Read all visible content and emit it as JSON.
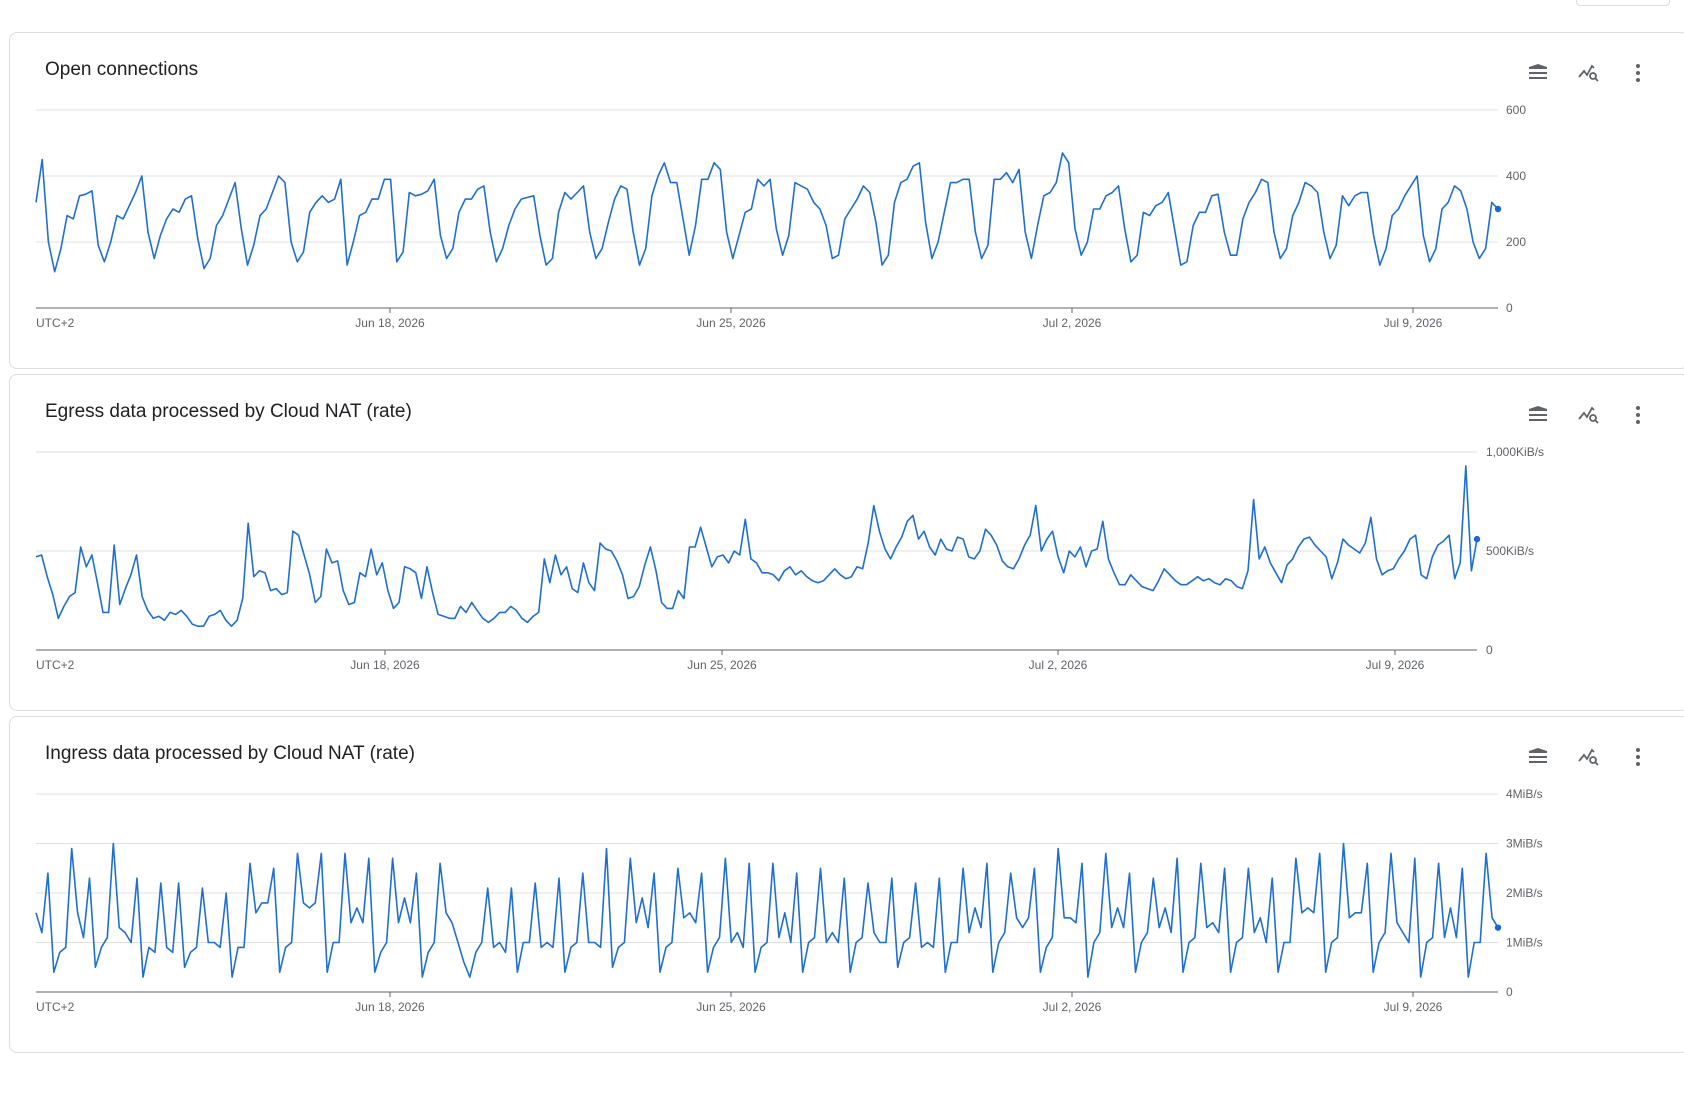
{
  "colors": {
    "series": "#1f6fd1",
    "grid": "#e0e0e0",
    "text": "#202124",
    "axis_text": "#5f6368"
  },
  "toolbar": {
    "legend_icon": "legend-icon",
    "explore_icon": "explore-icon",
    "more_icon": "more-vert-icon"
  },
  "cards": [
    {
      "title": "Open connections"
    },
    {
      "title": "Egress data processed by Cloud NAT (rate)"
    },
    {
      "title": "Ingress data processed by Cloud NAT (rate)"
    }
  ],
  "chart_data": [
    {
      "type": "line",
      "title": "Open connections",
      "timezone_label": "UTC+2",
      "x_tick_labels": [
        "Jun 18, 2026",
        "Jun 25, 2026",
        "Jul 2, 2026",
        "Jul 9, 2026"
      ],
      "x_range": [
        "2026-06-11T00:00",
        "2026-07-11T12:00"
      ],
      "y_tick_labels": [
        "0",
        "200",
        "400",
        "600"
      ],
      "ylim": [
        0,
        600
      ],
      "grid": true,
      "series": [
        {
          "values": [
            320,
            450,
            200,
            110,
            180,
            280,
            270,
            340,
            345,
            355,
            190,
            140,
            200,
            280,
            270,
            310,
            350,
            400,
            230,
            150,
            220,
            270,
            300,
            290,
            330,
            340,
            210,
            120,
            150,
            250,
            280,
            330,
            380,
            240,
            130,
            190,
            280,
            300,
            350,
            400,
            380,
            200,
            140,
            170,
            290,
            320,
            340,
            320,
            330,
            390,
            130,
            200,
            280,
            290,
            330,
            330,
            390,
            390,
            140,
            170,
            350,
            340,
            345,
            355,
            390,
            220,
            150,
            180,
            290,
            330,
            330,
            360,
            370,
            230,
            140,
            180,
            250,
            300,
            330,
            335,
            340,
            220,
            130,
            150,
            290,
            350,
            330,
            350,
            370,
            230,
            150,
            180,
            260,
            330,
            370,
            360,
            230,
            130,
            180,
            340,
            400,
            440,
            380,
            380,
            270,
            160,
            250,
            390,
            390,
            440,
            420,
            230,
            150,
            220,
            290,
            300,
            390,
            370,
            390,
            240,
            160,
            220,
            380,
            370,
            360,
            320,
            300,
            250,
            150,
            160,
            270,
            300,
            330,
            370,
            350,
            260,
            130,
            160,
            320,
            380,
            390,
            430,
            440,
            260,
            150,
            200,
            290,
            380,
            380,
            390,
            390,
            230,
            150,
            190,
            390,
            390,
            410,
            380,
            420,
            230,
            150,
            250,
            340,
            350,
            380,
            470,
            440,
            240,
            160,
            200,
            300,
            300,
            340,
            350,
            370,
            240,
            140,
            160,
            290,
            280,
            310,
            320,
            350,
            240,
            130,
            140,
            250,
            290,
            290,
            340,
            345,
            230,
            160,
            160,
            270,
            320,
            350,
            390,
            380,
            230,
            150,
            180,
            280,
            320,
            380,
            370,
            350,
            230,
            150,
            190,
            340,
            310,
            340,
            350,
            350,
            220,
            130,
            180,
            280,
            300,
            340,
            370,
            400,
            220,
            140,
            180,
            300,
            320,
            370,
            355,
            300,
            200,
            150,
            180,
            320,
            300
          ]
        }
      ]
    },
    {
      "type": "line",
      "title": "Egress data processed by Cloud NAT (rate)",
      "timezone_label": "UTC+2",
      "x_tick_labels": [
        "Jun 18, 2026",
        "Jun 25, 2026",
        "Jul 2, 2026",
        "Jul 9, 2026"
      ],
      "x_range": [
        "2026-06-11T00:00",
        "2026-07-11T12:00"
      ],
      "y_tick_labels": [
        "0",
        "500KiB/s",
        "1,000KiB/s"
      ],
      "ylim": [
        0,
        1000
      ],
      "grid": true,
      "series": [
        {
          "values": [
            470,
            480,
            370,
            280,
            160,
            220,
            270,
            290,
            520,
            420,
            480,
            340,
            190,
            190,
            530,
            230,
            310,
            380,
            480,
            270,
            200,
            160,
            170,
            150,
            190,
            180,
            200,
            170,
            130,
            120,
            120,
            170,
            180,
            200,
            150,
            120,
            150,
            260,
            640,
            370,
            400,
            390,
            300,
            310,
            280,
            290,
            600,
            580,
            480,
            380,
            240,
            270,
            510,
            440,
            450,
            300,
            230,
            240,
            390,
            370,
            510,
            380,
            440,
            300,
            210,
            240,
            420,
            410,
            390,
            260,
            420,
            290,
            180,
            170,
            160,
            160,
            220,
            190,
            240,
            200,
            160,
            140,
            160,
            190,
            190,
            220,
            200,
            160,
            140,
            170,
            190,
            460,
            340,
            480,
            380,
            420,
            310,
            290,
            440,
            340,
            300,
            540,
            510,
            500,
            450,
            380,
            260,
            270,
            320,
            430,
            520,
            400,
            240,
            210,
            210,
            300,
            260,
            520,
            520,
            620,
            520,
            420,
            470,
            480,
            440,
            500,
            480,
            660,
            460,
            440,
            390,
            390,
            380,
            350,
            400,
            420,
            380,
            400,
            370,
            350,
            340,
            350,
            380,
            410,
            380,
            360,
            370,
            420,
            410,
            540,
            730,
            600,
            510,
            460,
            520,
            570,
            650,
            680,
            560,
            600,
            520,
            480,
            560,
            510,
            500,
            570,
            560,
            470,
            460,
            500,
            610,
            580,
            530,
            450,
            420,
            410,
            460,
            530,
            580,
            730,
            500,
            560,
            600,
            470,
            390,
            500,
            470,
            520,
            420,
            500,
            510,
            650,
            460,
            390,
            330,
            330,
            380,
            350,
            320,
            310,
            300,
            350,
            410,
            380,
            350,
            330,
            330,
            350,
            370,
            350,
            360,
            340,
            330,
            360,
            350,
            320,
            310,
            400,
            760,
            460,
            520,
            440,
            390,
            340,
            430,
            460,
            520,
            560,
            570,
            530,
            500,
            470,
            360,
            440,
            560,
            530,
            510,
            490,
            540,
            670,
            460,
            380,
            400,
            410,
            460,
            500,
            560,
            580,
            380,
            360,
            470,
            530,
            550,
            580,
            360,
            440,
            930,
            400,
            560
          ]
        }
      ]
    },
    {
      "type": "line",
      "title": "Ingress data processed by Cloud NAT (rate)",
      "timezone_label": "UTC+2",
      "x_tick_labels": [
        "Jun 18, 2026",
        "Jun 25, 2026",
        "Jul 2, 2026",
        "Jul 9, 2026"
      ],
      "x_range": [
        "2026-06-11T00:00",
        "2026-07-11T12:00"
      ],
      "y_tick_labels": [
        "0",
        "1MiB/s",
        "2MiB/s",
        "3MiB/s",
        "4MiB/s"
      ],
      "ylim": [
        0,
        4
      ],
      "grid": true,
      "series": [
        {
          "values": [
            1.6,
            1.2,
            2.4,
            0.4,
            0.8,
            0.9,
            2.9,
            1.6,
            1.1,
            2.3,
            0.5,
            0.9,
            1.1,
            3.0,
            1.3,
            1.2,
            1.0,
            2.3,
            0.3,
            0.9,
            0.8,
            2.2,
            0.9,
            0.8,
            2.2,
            0.5,
            0.8,
            0.9,
            2.1,
            1.0,
            1.0,
            0.9,
            2.0,
            0.3,
            0.9,
            0.9,
            2.6,
            1.6,
            1.8,
            1.8,
            2.5,
            0.4,
            0.9,
            1.0,
            2.8,
            1.8,
            1.7,
            1.8,
            2.8,
            0.4,
            1.0,
            1.0,
            2.8,
            1.4,
            1.7,
            1.4,
            2.7,
            0.4,
            0.8,
            1.0,
            2.7,
            1.4,
            1.9,
            1.4,
            2.4,
            0.3,
            0.8,
            1.0,
            2.6,
            1.6,
            1.4,
            1.0,
            0.6,
            0.3,
            0.8,
            1.0,
            2.1,
            0.9,
            1.0,
            0.8,
            2.1,
            0.4,
            1.0,
            1.0,
            2.2,
            0.9,
            1.0,
            0.9,
            2.3,
            0.4,
            0.9,
            1.0,
            2.4,
            1.0,
            1.0,
            0.9,
            2.9,
            0.5,
            0.9,
            1.0,
            2.7,
            1.4,
            1.9,
            1.3,
            2.4,
            0.4,
            0.9,
            1.0,
            2.5,
            1.5,
            1.6,
            1.4,
            2.4,
            0.4,
            0.9,
            1.1,
            2.7,
            1.0,
            1.2,
            0.9,
            2.6,
            0.4,
            0.9,
            1.0,
            2.6,
            1.1,
            1.6,
            1.0,
            2.4,
            0.4,
            1.0,
            1.1,
            2.5,
            1.0,
            1.2,
            1.0,
            2.3,
            0.4,
            1.0,
            1.1,
            2.2,
            1.2,
            1.0,
            1.0,
            2.3,
            0.5,
            1.0,
            1.1,
            2.2,
            0.9,
            1.0,
            0.9,
            2.3,
            0.4,
            1.0,
            1.0,
            2.5,
            1.2,
            1.7,
            1.3,
            2.6,
            0.4,
            1.0,
            1.2,
            2.4,
            1.5,
            1.3,
            1.5,
            2.5,
            0.4,
            0.9,
            1.1,
            2.9,
            1.5,
            1.5,
            1.4,
            2.6,
            0.3,
            1.0,
            1.2,
            2.8,
            1.3,
            1.7,
            1.3,
            2.4,
            0.4,
            1.0,
            1.2,
            2.3,
            1.3,
            1.7,
            1.2,
            2.7,
            0.4,
            1.0,
            1.1,
            2.6,
            1.3,
            1.4,
            1.2,
            2.5,
            0.4,
            1.0,
            1.1,
            2.5,
            1.2,
            1.5,
            1.0,
            2.3,
            0.4,
            1.0,
            1.0,
            2.7,
            1.6,
            1.7,
            1.6,
            2.8,
            0.4,
            1.0,
            1.1,
            3.0,
            1.5,
            1.6,
            1.6,
            2.6,
            0.4,
            1.0,
            1.2,
            2.8,
            1.4,
            1.2,
            1.0,
            2.7,
            0.3,
            1.0,
            1.1,
            2.6,
            1.1,
            1.7,
            1.1,
            2.5,
            0.3,
            1.0,
            1.0,
            2.8,
            1.5,
            1.3
          ]
        }
      ]
    }
  ]
}
